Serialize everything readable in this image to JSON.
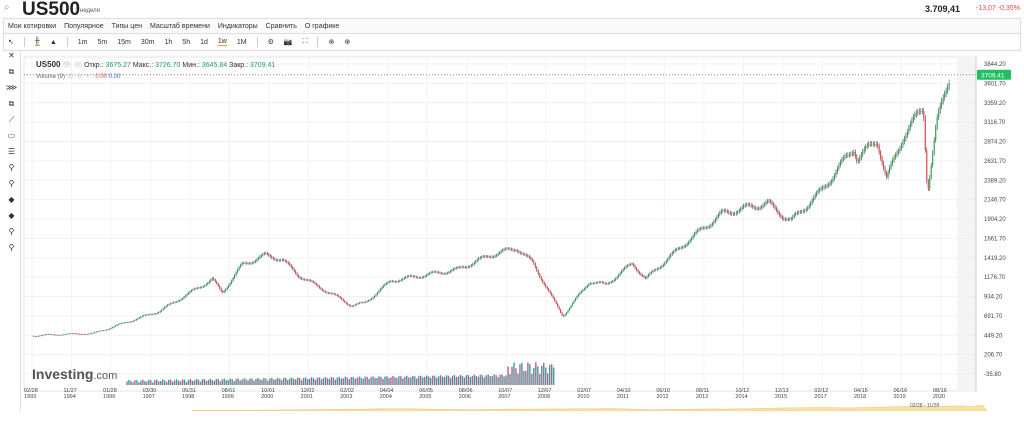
{
  "header": {
    "search_icon": "search-icon",
    "symbol": "US500",
    "period": "1 неделя",
    "price": "3.709,41",
    "change": "-13,07",
    "change_pct": "-0,35%"
  },
  "menu": [
    "Мои котировки",
    "Популярное",
    "Типы цен",
    "Масштаб времени",
    "Индикаторы",
    "Сравнить",
    "О графике"
  ],
  "toolbar": {
    "chart_types": [
      "candles-icon",
      "area-icon"
    ],
    "intervals": [
      "1m",
      "5m",
      "15m",
      "30m",
      "1h",
      "5h",
      "1d",
      "1w",
      "1M"
    ],
    "selected_interval": "1w",
    "actions": [
      "gear-icon",
      "camera-icon",
      "fullscreen-icon",
      "download-icon",
      "upload-icon"
    ]
  },
  "left_tools": [
    "✕",
    "⧉",
    "⋙",
    "⧉",
    "⟋",
    "▭",
    "☰",
    "⚲",
    "⚲",
    "◆",
    "◆",
    "⚲",
    "⚲"
  ],
  "legend": {
    "symbol": "US500",
    "open_label": "Откр.:",
    "open": "3675.27",
    "high_label": "Макс.:",
    "high": "3726.70",
    "low_label": "Мин.:",
    "low": "3645.84",
    "close_label": "Закр.:",
    "close": "3709.41",
    "volume_label": "Volume (9)",
    "vol1": "0.00",
    "vol2": "0.00"
  },
  "logo": {
    "main": "Investing",
    "suffix": ".com"
  },
  "last_price_tag": "3709.41",
  "navigator_range": "02/28 - 11/28",
  "colors": {
    "up": "#26a65b",
    "down": "#e0474c",
    "tag": "#20c060",
    "nav": "#f7e0a0"
  },
  "chart_data": {
    "type": "line",
    "yticks": [
      "3844.20",
      "3601.70",
      "3359.20",
      "3116.70",
      "2874.20",
      "2631.70",
      "2389.20",
      "2146.70",
      "1904.20",
      "1661.70",
      "1419.20",
      "1176.70",
      "934.20",
      "691.70",
      "449.20",
      "206.70",
      "-35.80"
    ],
    "xticks": [
      [
        "02/28",
        "1993"
      ],
      [
        "11/27",
        "1994"
      ],
      [
        "01/28",
        "1996"
      ],
      [
        "03/30",
        "1997"
      ],
      [
        "05/31",
        "1998"
      ],
      [
        "08/01",
        "1999"
      ],
      [
        "10/01",
        "2000"
      ],
      [
        "12/02",
        "2001"
      ],
      [
        "02/02",
        "2003"
      ],
      [
        "04/04",
        "2004"
      ],
      [
        "06/05",
        "2005"
      ],
      [
        "08/06",
        "2006"
      ],
      [
        "10/07",
        "2007"
      ],
      [
        "12/07",
        "2008"
      ],
      [
        "02/07",
        "2010"
      ],
      [
        "04/10",
        "2011"
      ],
      [
        "06/10",
        "2012"
      ],
      [
        "08/11",
        "2013"
      ],
      [
        "10/12",
        "2014"
      ],
      [
        "12/13",
        "2015"
      ],
      [
        "02/12",
        "2017"
      ],
      [
        "04/15",
        "2018"
      ],
      [
        "06/16",
        "2019"
      ],
      [
        "08/16",
        "2020"
      ]
    ],
    "ylim": [
      -35.8,
      3844.2
    ],
    "x": [
      1993.15,
      1994,
      1995,
      1996,
      1997,
      1997.8,
      1998.6,
      1998.9,
      1999.5,
      2000.2,
      2000.7,
      2001.2,
      2001.7,
      2002.5,
      2002.8,
      2003.2,
      2004,
      2005,
      2006,
      2007,
      2007.8,
      2008.3,
      2008.9,
      2009.2,
      2010,
      2010.5,
      2011.3,
      2011.7,
      2012,
      2013,
      2014,
      2014.8,
      2015.4,
      2015.9,
      2016.1,
      2017,
      2018,
      2018.1,
      2018.7,
      2018.98,
      2019.5,
      2020.1,
      2020.22,
      2020.5,
      2020.9
    ],
    "values": [
      440,
      460,
      470,
      610,
      750,
      950,
      1150,
      980,
      1330,
      1450,
      1400,
      1200,
      1080,
      900,
      820,
      850,
      1130,
      1200,
      1270,
      1450,
      1540,
      1350,
      900,
      690,
      1120,
      1080,
      1350,
      1150,
      1270,
      1640,
      1970,
      2050,
      2100,
      1930,
      1880,
      2250,
      2800,
      2650,
      2900,
      2400,
      2950,
      3300,
      2250,
      3100,
      3709
    ]
  }
}
